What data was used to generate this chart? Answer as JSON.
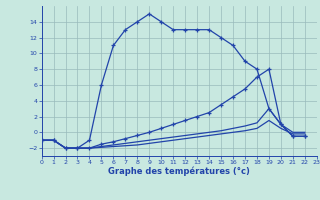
{
  "background_color": "#c8e8e0",
  "grid_color": "#99bbbb",
  "line_color": "#2244aa",
  "xlabel": "Graphe des températures (°c)",
  "hours": [
    0,
    1,
    2,
    3,
    4,
    5,
    6,
    7,
    8,
    9,
    10,
    11,
    12,
    13,
    14,
    15,
    16,
    17,
    18,
    19,
    20,
    21,
    22
  ],
  "line1": [
    -1,
    -1,
    -2,
    -2,
    -1,
    6,
    11,
    13,
    14,
    15,
    14,
    13,
    13,
    13,
    13,
    12,
    11,
    9,
    8,
    3,
    1,
    -0.5,
    -0.5
  ],
  "line2": [
    -1,
    -1,
    -2,
    -2,
    -2,
    -1.5,
    -1.2,
    -0.8,
    -0.4,
    0,
    0.5,
    1,
    1.5,
    2,
    2.5,
    3.5,
    4.5,
    5.5,
    7,
    8,
    1,
    -0.5,
    -0.5
  ],
  "line3": [
    -1,
    -1,
    -2,
    -2,
    -2,
    -1.8,
    -1.6,
    -1.4,
    -1.2,
    -1,
    -0.8,
    -0.6,
    -0.4,
    -0.2,
    0,
    0.2,
    0.5,
    0.8,
    1.2,
    3,
    1,
    0,
    0
  ],
  "line4": [
    -1,
    -1,
    -2,
    -2,
    -2,
    -1.9,
    -1.8,
    -1.7,
    -1.6,
    -1.4,
    -1.2,
    -1.0,
    -0.8,
    -0.6,
    -0.4,
    -0.2,
    0,
    0.2,
    0.5,
    1.5,
    0.5,
    -0.2,
    -0.2
  ],
  "ylim": [
    -3,
    16
  ],
  "yticks": [
    -2,
    0,
    2,
    4,
    6,
    8,
    10,
    12,
    14
  ],
  "xticks": [
    0,
    1,
    2,
    3,
    4,
    5,
    6,
    7,
    8,
    9,
    10,
    11,
    12,
    13,
    14,
    15,
    16,
    17,
    18,
    19,
    20,
    21,
    22,
    23
  ]
}
